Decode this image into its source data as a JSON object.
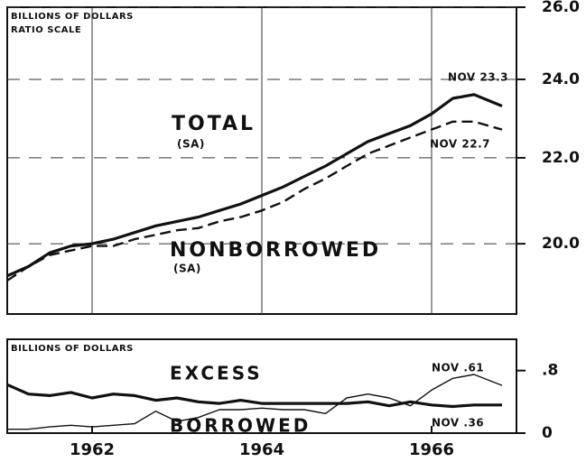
{
  "chart_data": [
    {
      "type": "line",
      "log_scale": true,
      "grid": true,
      "annotations": [
        "BILLIONS OF DOLLARS",
        "RATIO SCALE",
        "TOTAL",
        "(SA)",
        "NONBORROWED",
        "(SA)",
        "NOV 23.3",
        "NOV 22.7"
      ],
      "x": [
        1961.0,
        1961.25,
        1961.5,
        1961.75,
        1962.0,
        1962.25,
        1962.5,
        1962.75,
        1963.0,
        1963.25,
        1963.5,
        1963.75,
        1964.0,
        1964.25,
        1964.5,
        1964.75,
        1965.0,
        1965.25,
        1965.5,
        1965.75,
        1966.0,
        1966.25,
        1966.5,
        1966.83
      ],
      "xlim": [
        1961.0,
        1967.0
      ],
      "xticks": [
        1962,
        1964,
        1966
      ],
      "ylim": [
        18.5,
        26
      ],
      "yticks": [
        {
          "value": 20,
          "label": "20.0"
        },
        {
          "value": 22,
          "label": "22.0"
        },
        {
          "value": 24,
          "label": "24.0"
        },
        {
          "value": 26,
          "label": "26.0"
        }
      ],
      "series": [
        {
          "name": "TOTAL",
          "color": "#111111",
          "line_style": "thick",
          "values": [
            19.3,
            19.5,
            19.8,
            19.95,
            20.0,
            20.1,
            20.25,
            20.4,
            20.5,
            20.6,
            20.75,
            20.9,
            21.1,
            21.3,
            21.55,
            21.8,
            22.1,
            22.4,
            22.6,
            22.8,
            23.1,
            23.5,
            23.6,
            23.3
          ]
        },
        {
          "name": "NONBORROWED",
          "color": "#111111",
          "line_style": "dashed",
          "values": [
            19.2,
            19.5,
            19.75,
            19.85,
            19.95,
            19.95,
            20.1,
            20.2,
            20.3,
            20.35,
            20.5,
            20.6,
            20.75,
            20.95,
            21.25,
            21.5,
            21.8,
            22.1,
            22.3,
            22.5,
            22.7,
            22.9,
            22.9,
            22.7
          ]
        }
      ]
    },
    {
      "type": "line",
      "grid": false,
      "annotations": [
        "BILLIONS OF DOLLARS",
        "EXCESS",
        "BORROWED",
        "NOV .61",
        "NOV .36"
      ],
      "x": [
        1961.0,
        1961.25,
        1961.5,
        1961.75,
        1962.0,
        1962.25,
        1962.5,
        1962.75,
        1963.0,
        1963.25,
        1963.5,
        1963.75,
        1964.0,
        1964.25,
        1964.5,
        1964.75,
        1965.0,
        1965.25,
        1965.5,
        1965.75,
        1966.0,
        1966.25,
        1966.5,
        1966.83
      ],
      "xlim": [
        1961.0,
        1967.0
      ],
      "xticks": [
        1962,
        1964,
        1966
      ],
      "ylim": [
        0,
        1.2
      ],
      "yticks": [
        0,
        {
          "value": 0.8,
          "label": ".8"
        }
      ],
      "series": [
        {
          "name": "EXCESS",
          "color": "#111111",
          "line_style": "thick",
          "values": [
            0.62,
            0.5,
            0.48,
            0.52,
            0.45,
            0.5,
            0.48,
            0.42,
            0.45,
            0.4,
            0.38,
            0.42,
            0.38,
            0.38,
            0.38,
            0.38,
            0.38,
            0.4,
            0.35,
            0.4,
            0.36,
            0.34,
            0.36,
            0.36
          ]
        },
        {
          "name": "BORROWED",
          "color": "#111111",
          "line_style": "thin",
          "values": [
            0.05,
            0.05,
            0.08,
            0.1,
            0.08,
            0.1,
            0.12,
            0.28,
            0.15,
            0.2,
            0.3,
            0.3,
            0.32,
            0.3,
            0.3,
            0.25,
            0.45,
            0.5,
            0.45,
            0.35,
            0.55,
            0.7,
            0.75,
            0.61
          ]
        }
      ]
    }
  ]
}
